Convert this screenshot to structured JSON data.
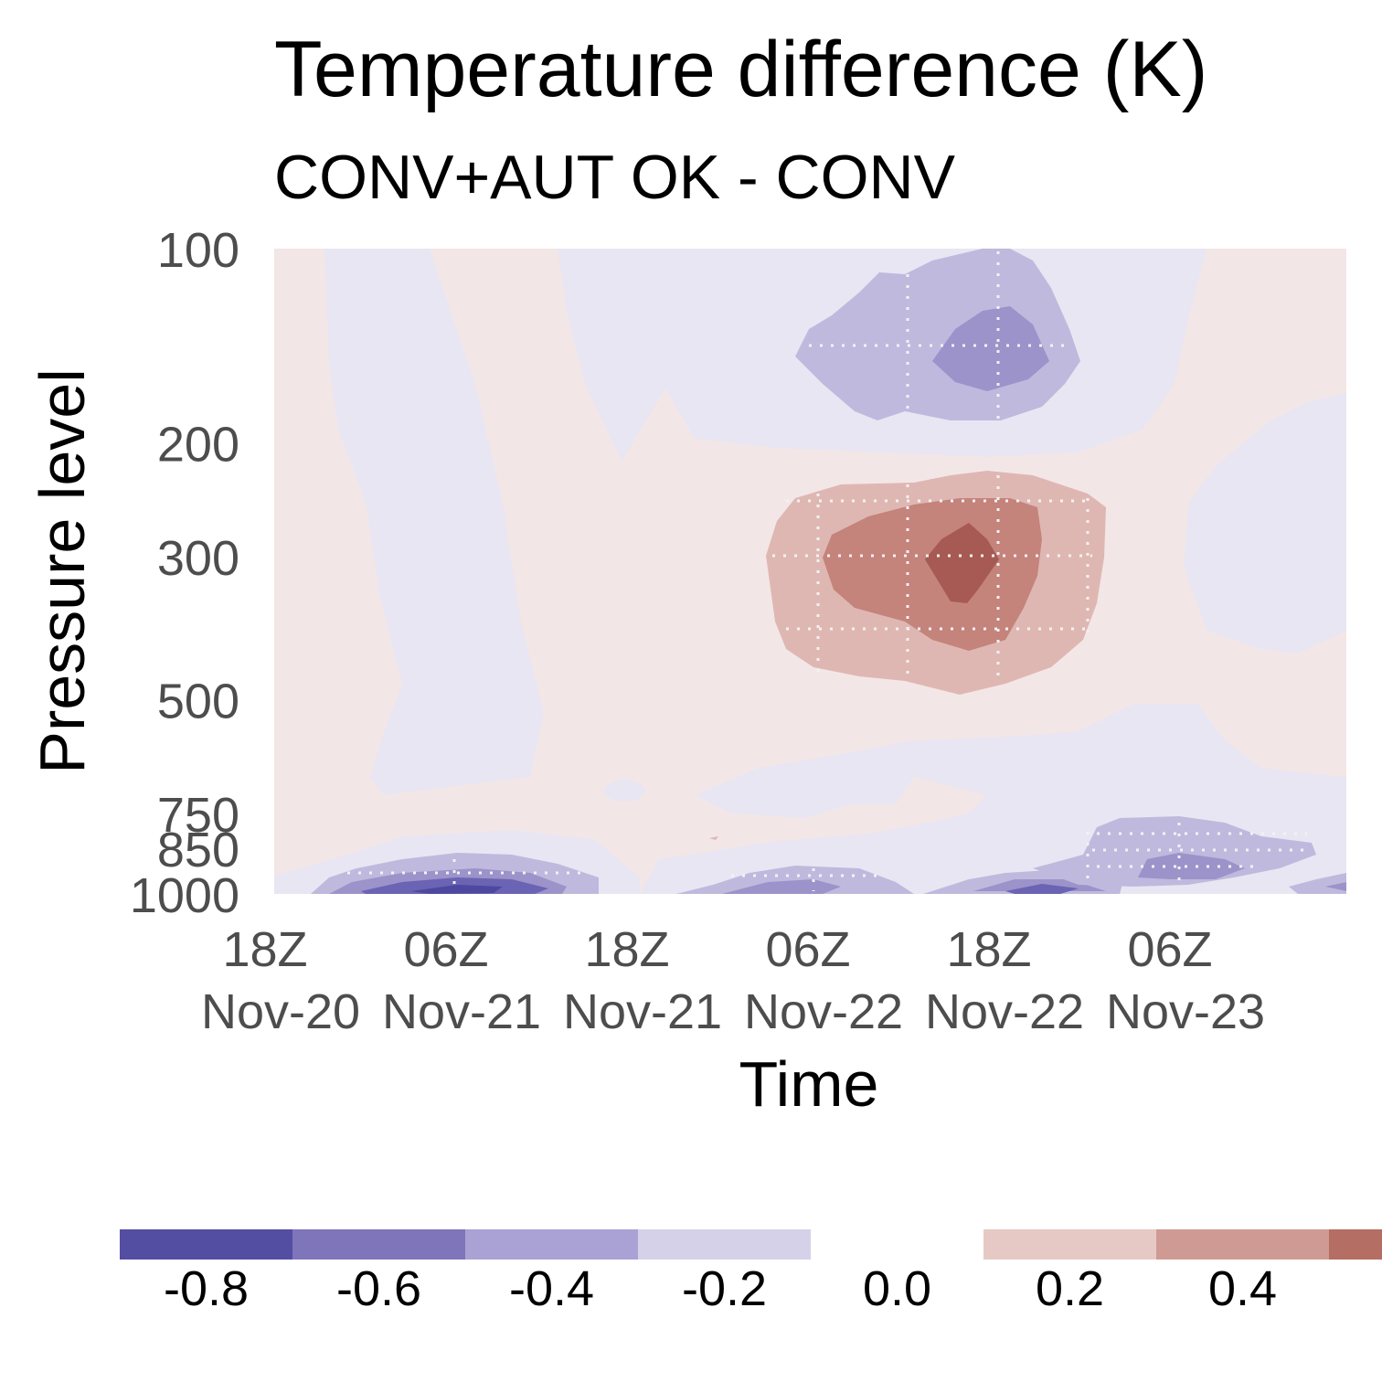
{
  "chart_data": {
    "type": "heatmap",
    "title": "Temperature difference (K)",
    "subtitle": "CONV+AUT OK - CONV",
    "xlabel": "Time",
    "ylabel": "Pressure level",
    "y_ticks": [
      "100",
      "200",
      "300",
      "500",
      "750",
      "850",
      "1000"
    ],
    "y_tick_values": [
      100,
      200,
      300,
      500,
      750,
      850,
      1000
    ],
    "y_scale": "log",
    "y_inverted": true,
    "x_ticks": [
      {
        "hour": "18Z",
        "date": "Nov-20"
      },
      {
        "hour": "06Z",
        "date": "Nov-21"
      },
      {
        "hour": "18Z",
        "date": "Nov-21"
      },
      {
        "hour": "06Z",
        "date": "Nov-22"
      },
      {
        "hour": "18Z",
        "date": "Nov-22"
      },
      {
        "hour": "06Z",
        "date": "Nov-23"
      }
    ],
    "features": [
      {
        "kind": "anomaly",
        "sign": "positive",
        "peak_value": 0.6,
        "time": "~14Z Nov-22",
        "pressure": 300
      },
      {
        "kind": "anomaly",
        "sign": "negative",
        "peak_value": -0.4,
        "time": "~18Z Nov-22",
        "pressure": 140
      },
      {
        "kind": "anomaly",
        "sign": "negative",
        "peak_value": -0.8,
        "time": "~03Z Nov-21",
        "pressure": 1000
      },
      {
        "kind": "anomaly",
        "sign": "negative",
        "peak_value": -0.4,
        "time": "~12Z Nov-23",
        "pressure": 900
      }
    ],
    "colorbar": {
      "labels": [
        "-0.8",
        "-0.6",
        "-0.4",
        "-0.2",
        "0.0",
        "0.2",
        "0.4"
      ],
      "bins": [
        {
          "color": "#544ea3"
        },
        {
          "color": "#7f75ba"
        },
        {
          "color": "#aaa2d4"
        },
        {
          "color": "#d5d1e9"
        },
        {
          "color": "#ffffff"
        },
        {
          "color": "#e6c9c4"
        },
        {
          "color": "#cf9a93"
        },
        {
          "color": "#b46e64"
        }
      ]
    },
    "colors": {
      "neg_faint": "#e8e6f2",
      "pos_faint": "#f3e6e6",
      "neg1": "#c0b9de",
      "neg2": "#9b93c9",
      "neg3": "#6b63b3",
      "neg4": "#4e48a0",
      "pos1": "#dfb7b2",
      "pos2": "#c4837b",
      "pos3": "#a65a53"
    }
  }
}
